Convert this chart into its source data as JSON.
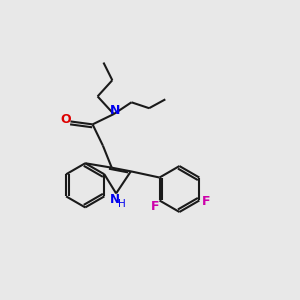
{
  "bg_color": "#e8e8e8",
  "bond_color": "#1a1a1a",
  "N_color": "#0000ee",
  "O_color": "#dd0000",
  "F_color": "#cc00aa",
  "NH_color": "#0000ee",
  "line_width": 1.5,
  "fig_size": [
    3.0,
    3.0
  ],
  "dpi": 100,
  "xlim": [
    0,
    10
  ],
  "ylim": [
    0,
    10
  ]
}
